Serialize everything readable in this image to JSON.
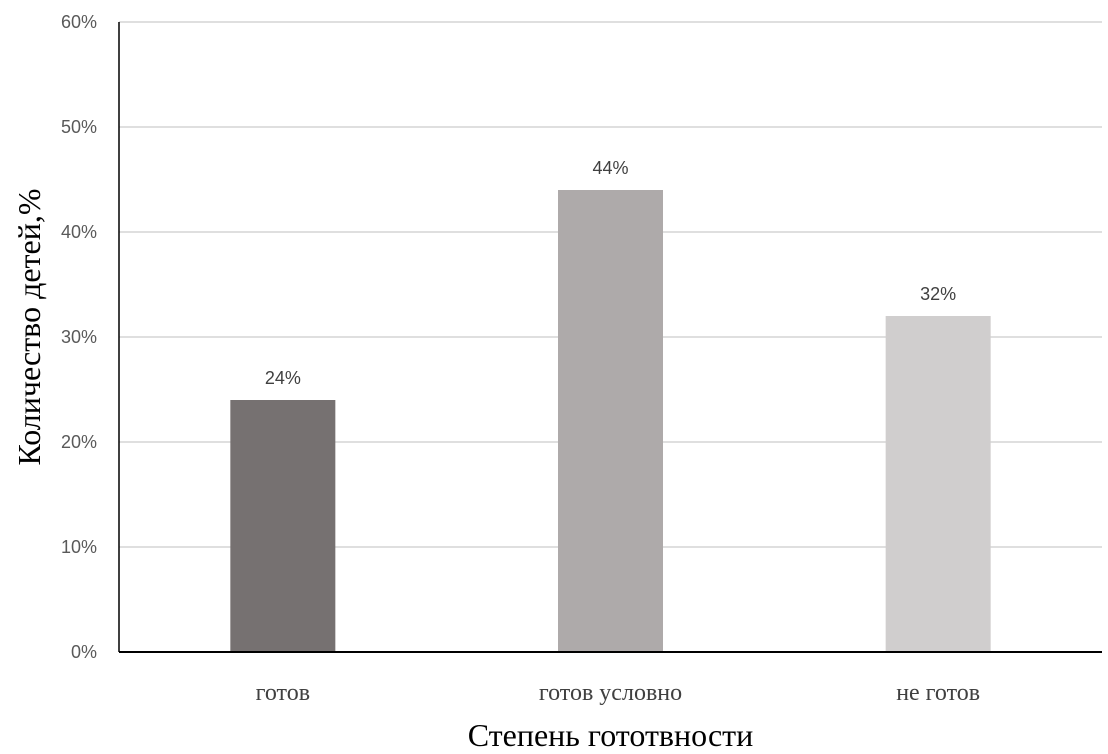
{
  "chart_data": {
    "type": "bar",
    "categories": [
      "готов",
      "готов условно",
      "не готов"
    ],
    "values": [
      24,
      44,
      32
    ],
    "data_labels": [
      "24%",
      "44%",
      "32%"
    ],
    "xlabel": "Степень гототвности",
    "ylabel": "Количество детей,%",
    "ylim": [
      0,
      60
    ],
    "yticks": [
      0,
      10,
      20,
      30,
      40,
      50,
      60
    ],
    "ytick_labels": [
      "0%",
      "10%",
      "20%",
      "30%",
      "40%",
      "50%",
      "60%"
    ],
    "grid": true,
    "legend": "none",
    "colors": [
      "#767171",
      "#AEAAAA",
      "#D0CECE"
    ],
    "grid_color": "#BFBFBF",
    "axis_color": "#000000"
  }
}
